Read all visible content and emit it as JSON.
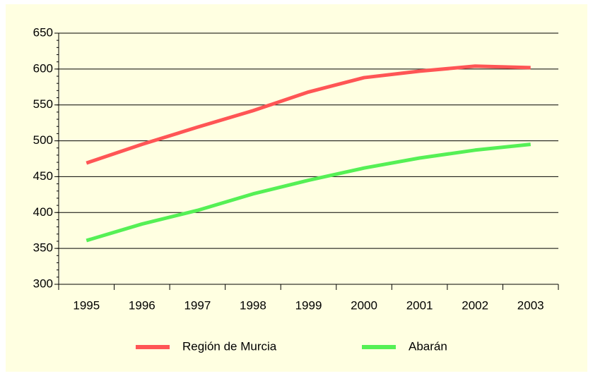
{
  "chart_data": {
    "type": "line",
    "categories": [
      "1995",
      "1996",
      "1997",
      "1998",
      "1999",
      "2000",
      "2001",
      "2002",
      "2003"
    ],
    "series": [
      {
        "name": "Región de Murcia",
        "color": "#ff5555",
        "values": [
          469,
          495,
          519,
          542,
          568,
          588,
          597,
          604,
          602
        ]
      },
      {
        "name": "Abarán",
        "color": "#55f055",
        "values": [
          361,
          384,
          403,
          426,
          445,
          462,
          476,
          487,
          495
        ]
      }
    ],
    "ylim": [
      300,
      650
    ],
    "yticks": [
      300,
      350,
      400,
      450,
      500,
      550,
      600,
      650
    ],
    "grid": true,
    "legend": "bottom"
  }
}
